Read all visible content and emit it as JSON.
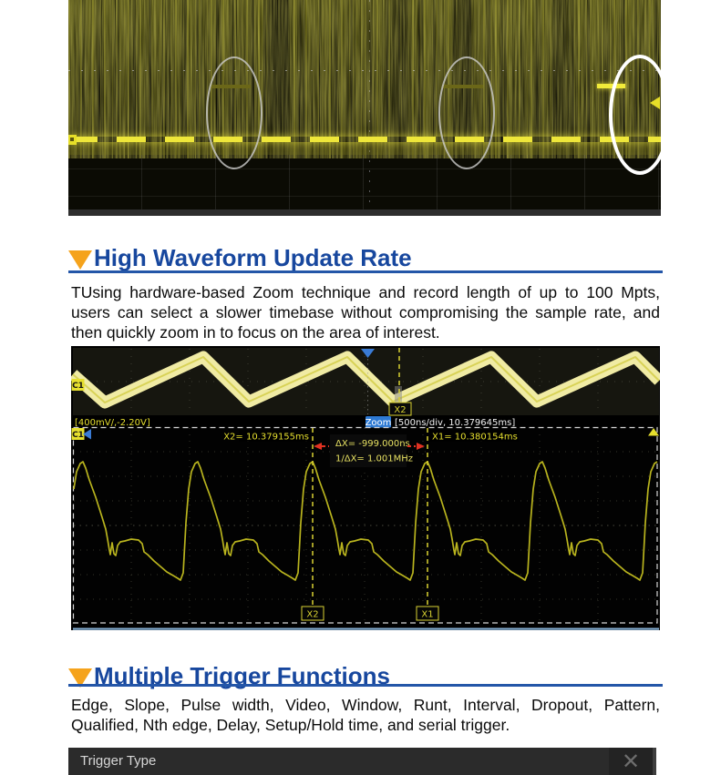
{
  "sections": [
    {
      "title": "High Waveform Update Rate",
      "body": "TUsing hardware-based Zoom technique and record length of up to 100 Mpts, users can select a slower timebase without compromising the sample rate, and then quickly zoom in to focus on the area of interest."
    },
    {
      "title": "Multiple Trigger Functions",
      "body": "Edge, Slope, Pulse width, Video, Window, Runt, Interval, Dropout, Pattern, Qualified, Nth edge, Delay, Setup/Hold time, and serial trigger."
    }
  ],
  "scope_zoom": {
    "channel_label": "C1",
    "channel_info": "[400mV/,-2.20V]",
    "zoom_badge": "Zoom",
    "timebase_info": "[500ns/div, 10.379645ms]",
    "x2_readout": "X2= 10.379155ms",
    "x1_readout": "X1= 10.380154ms",
    "delta_readout": "ΔX= -999.000ns",
    "freq_readout": "1/ΔX= 1.001MHz",
    "x2_marker": "X2",
    "x1_marker": "X1"
  },
  "trigger_dialog": {
    "title": "Trigger Type",
    "close_glyph": "✕"
  },
  "colors": {
    "heading_blue": "#17479e",
    "rule_blue": "#2456a8",
    "bullet_orange": "#f5a31c",
    "scope_yellow": "#e6df2e",
    "trace_yellow": "#b9b41e",
    "cursor_red": "#e03222",
    "marker_blue": "#3a7bd5"
  }
}
